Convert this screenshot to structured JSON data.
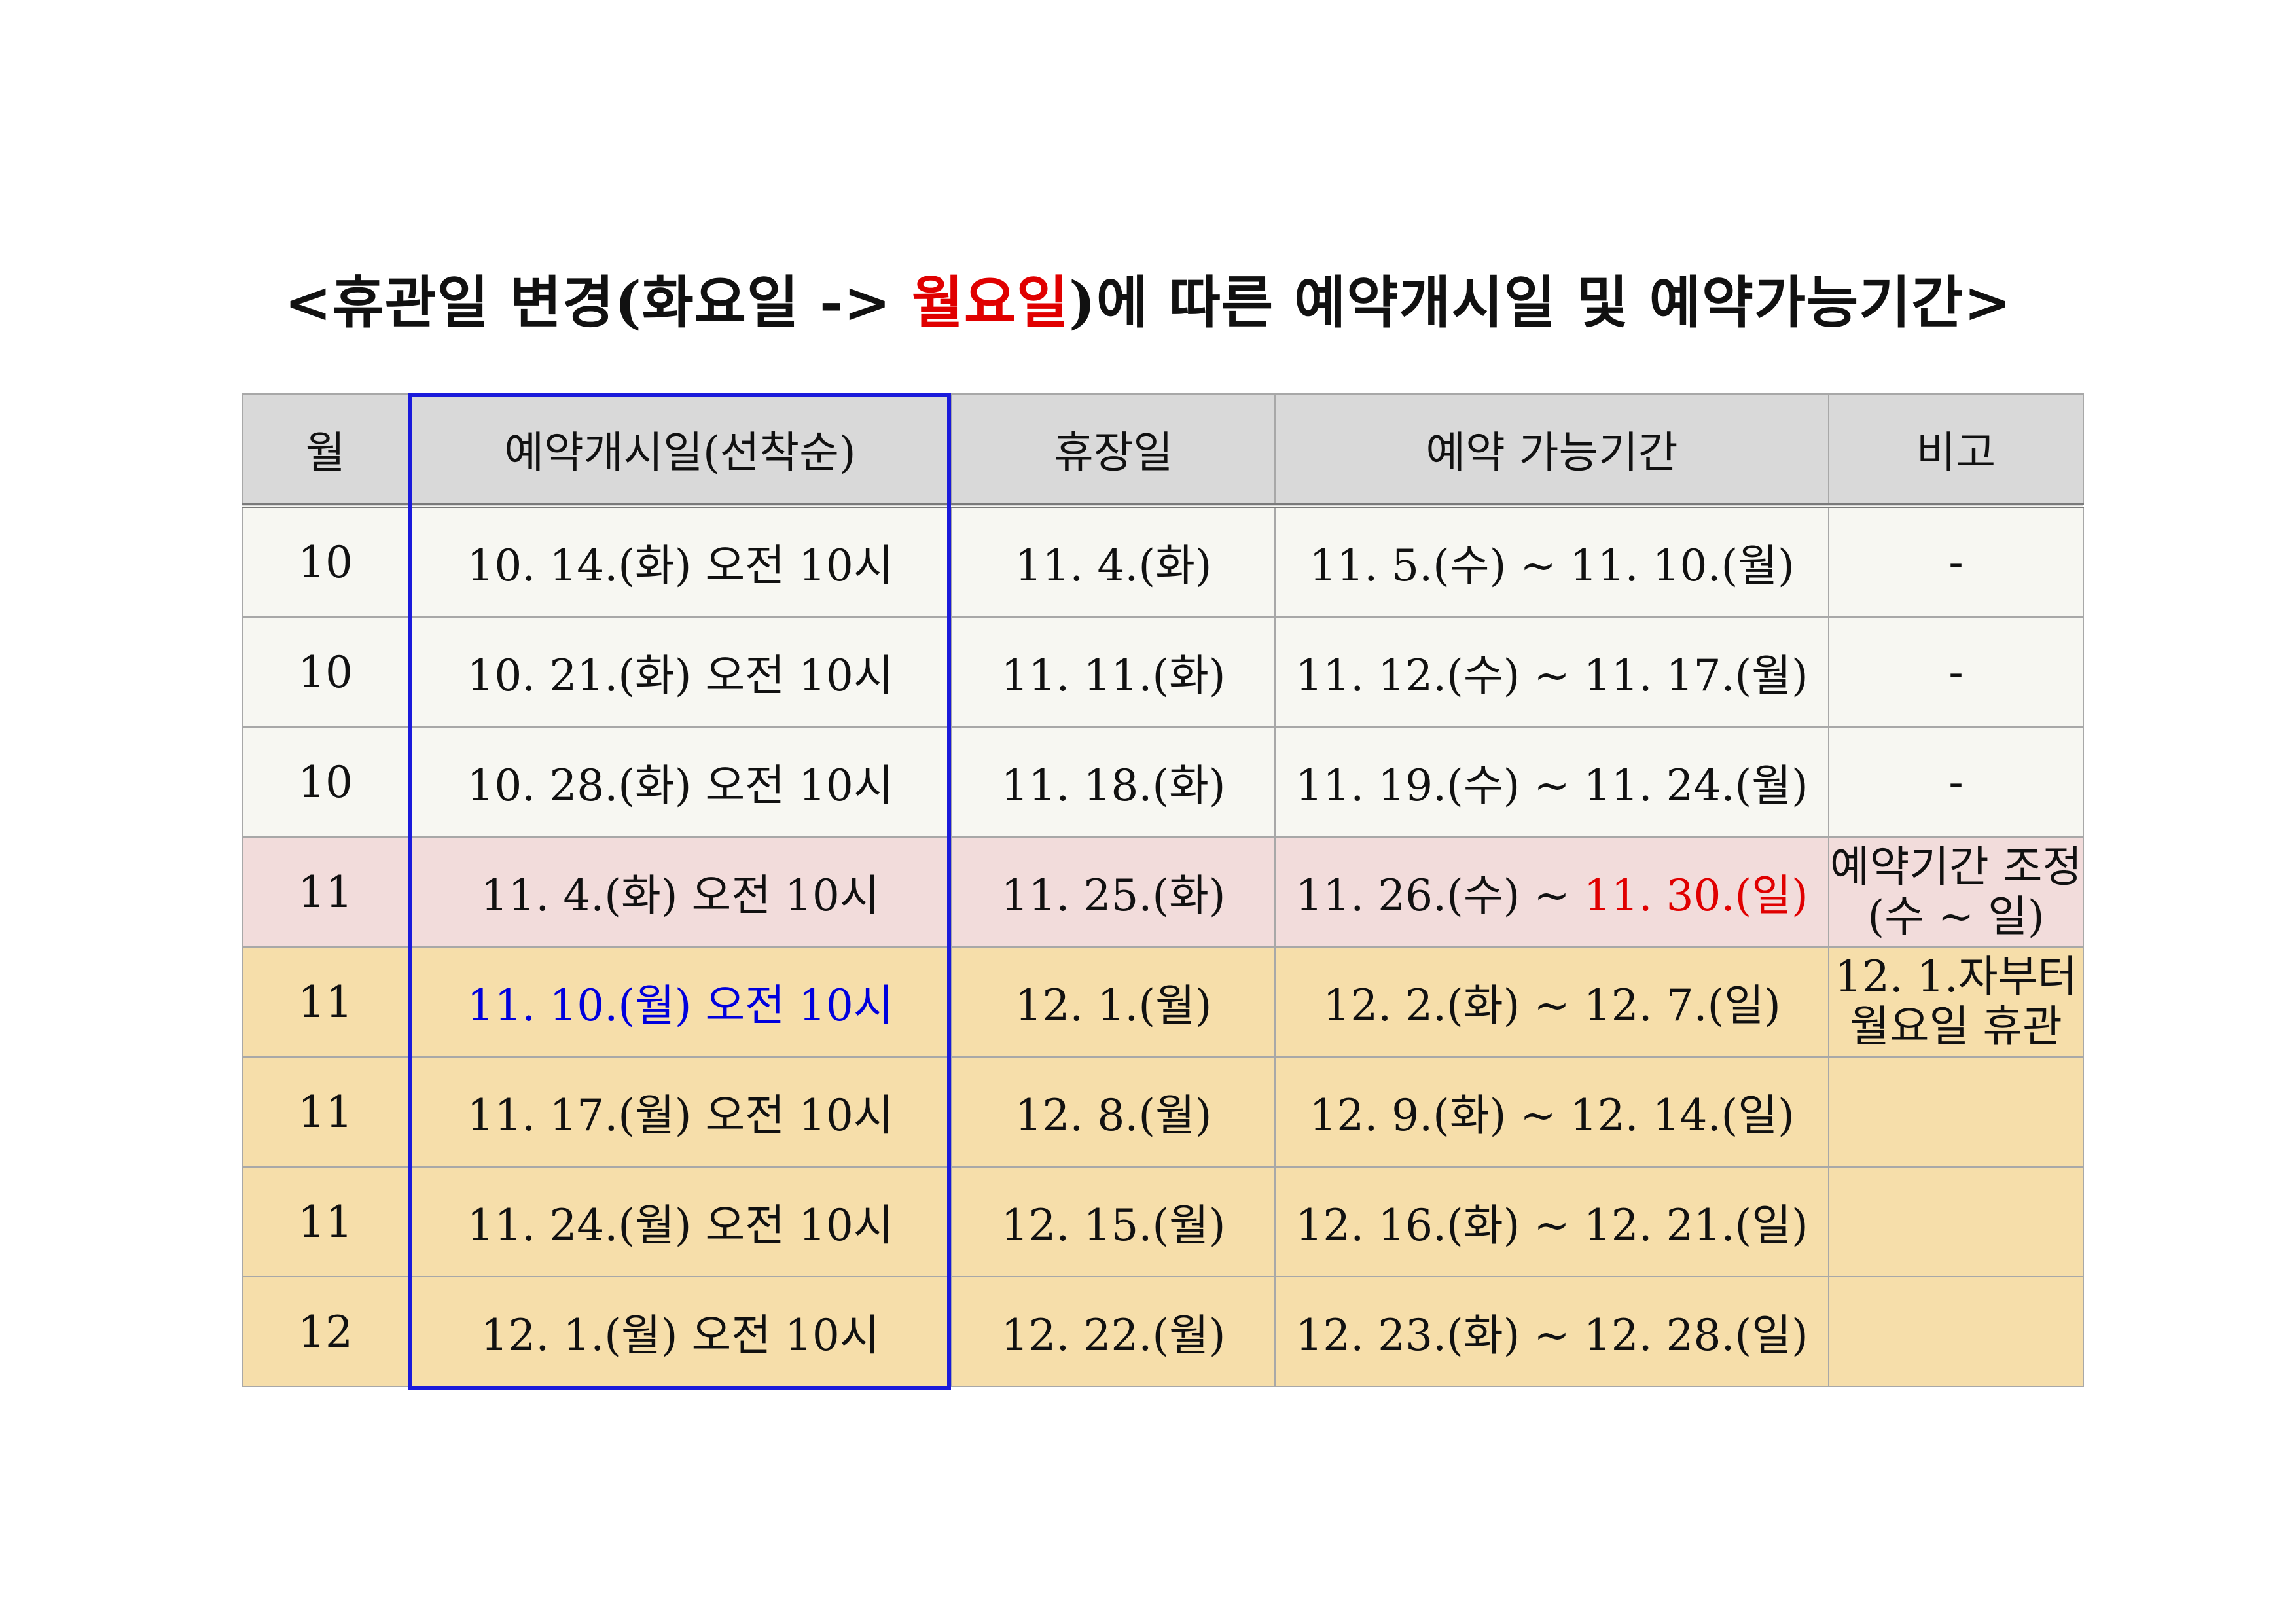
{
  "title": {
    "before": "<휴관일 변경(화요일 -> ",
    "highlight": "월요일",
    "after": ")에 따른 예약개시일 및 예약가능기간>"
  },
  "table": {
    "headers": [
      "월",
      "예약개시일(선착순)",
      "휴장일",
      "예약 가능기간",
      "비고"
    ],
    "rows": [
      {
        "month": "10",
        "open": "10. 14.(화) 오전 10시",
        "closed": "11. 4.(화)",
        "period": "11. 5.(수) ~ 11. 10.(월)",
        "note": "-"
      },
      {
        "month": "10",
        "open": "10. 21.(화) 오전 10시",
        "closed": "11. 11.(화)",
        "period": "11. 12.(수) ~ 11. 17.(월)",
        "note": "-"
      },
      {
        "month": "10",
        "open": "10. 28.(화) 오전 10시",
        "closed": "11. 18.(화)",
        "period": "11. 19.(수) ~ 11. 24.(월)",
        "note": "-"
      },
      {
        "month": "11",
        "open": "11. 4.(화) 오전 10시",
        "closed": "11. 25.(화)",
        "period_start": "11. 26.(수) ~ ",
        "period_end": "11. 30.(일)",
        "note_line1": "예약기간 조정",
        "note_line2": "(수 ~ 일)"
      },
      {
        "month": "11",
        "open": "11. 10.(월) 오전 10시",
        "closed": "12. 1.(월)",
        "period": "12. 2.(화) ~ 12. 7.(일)",
        "note_line1": "12. 1.자부터",
        "note_line2": "월요일 휴관"
      },
      {
        "month": "11",
        "open": "11. 17.(월) 오전 10시",
        "closed": "12. 8.(월)",
        "period": "12. 9.(화) ~ 12. 14.(일)",
        "note": ""
      },
      {
        "month": "11",
        "open": "11. 24.(월) 오전 10시",
        "closed": "12. 15.(월)",
        "period": "12. 16.(화) ~ 12. 21.(일)",
        "note": ""
      },
      {
        "month": "12",
        "open": "12. 1.(월) 오전 10시",
        "closed": "12. 22.(월)",
        "period": "12. 23.(화) ~ 12. 28.(일)",
        "note": ""
      }
    ]
  },
  "colors": {
    "title_highlight": "#e00000",
    "header_bg": "#d9d9d9",
    "row_tuesday_bg": "#f7f7f2",
    "row_transition_bg": "#f2dcdb",
    "row_monday_bg": "#f6deaa",
    "column_outline": "#1a1adb",
    "blue_text": "#0000dd",
    "red_text": "#e00000"
  }
}
